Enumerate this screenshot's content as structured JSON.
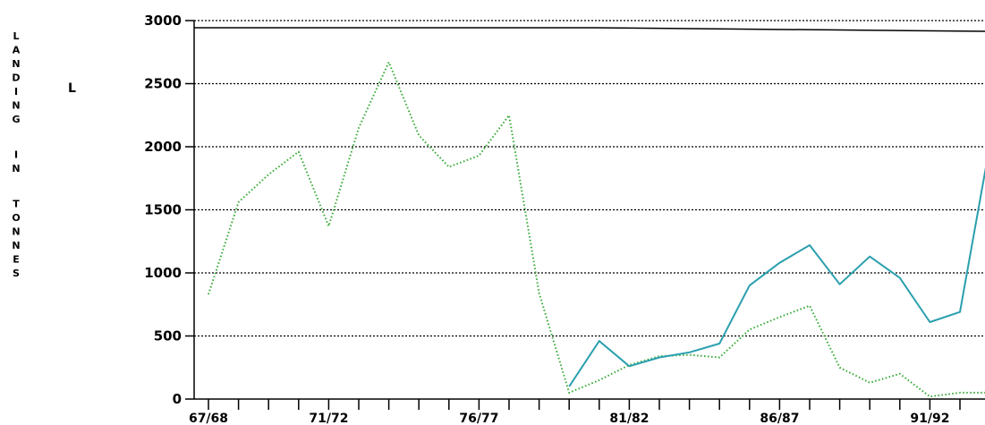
{
  "chart_data": {
    "type": "line",
    "ylabel": "LANDING IN TONNES",
    "marker_label": "L",
    "ylim": [
      0,
      3000
    ],
    "yticks": [
      0,
      500,
      1000,
      1500,
      2000,
      2500,
      3000
    ],
    "xtick_labels": [
      "67/68",
      "71/72",
      "76/77",
      "81/82",
      "86/87",
      "91/92"
    ],
    "x": [
      "67/68",
      "68/69",
      "69/70",
      "70/71",
      "71/72",
      "72/73",
      "73/74",
      "74/75",
      "75/76",
      "76/77",
      "77/78",
      "78/79",
      "79/80",
      "80/81",
      "81/82",
      "82/83",
      "83/84",
      "84/85",
      "85/86",
      "86/87",
      "87/88",
      "88/89",
      "89/90",
      "90/91",
      "91/92",
      "92/93",
      "93/94"
    ],
    "grid": true,
    "series": [
      {
        "color": "#33aa33",
        "style": "dotted",
        "values": [
          830,
          1560,
          1780,
          1960,
          1370,
          2150,
          2670,
          2090,
          1840,
          1930,
          2250,
          840,
          50,
          150,
          270,
          340,
          350,
          330,
          550,
          650,
          740,
          250,
          130,
          200,
          20,
          50,
          50
        ]
      },
      {
        "color": "#2a9fae",
        "style": "solid",
        "values": [
          null,
          null,
          null,
          null,
          null,
          null,
          null,
          null,
          null,
          null,
          null,
          null,
          100,
          460,
          260,
          330,
          370,
          440,
          900,
          1080,
          1220,
          910,
          1130,
          960,
          610,
          690,
          2020
        ]
      }
    ]
  }
}
